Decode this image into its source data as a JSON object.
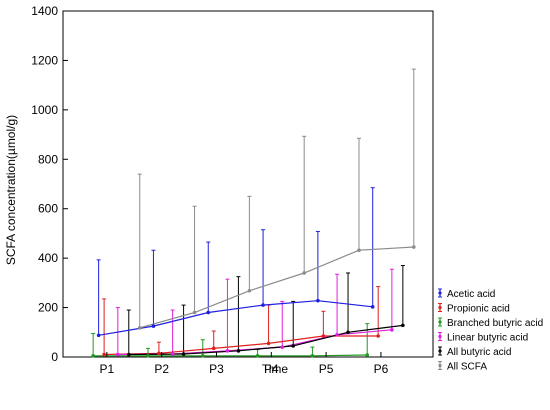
{
  "chart_data": {
    "type": "line",
    "xlabel": "Time",
    "ylabel": "SCFA concentration(µmol/g)",
    "ylim": [
      0,
      1400
    ],
    "yticks": [
      0,
      200,
      400,
      600,
      800,
      1000,
      1200,
      1400
    ],
    "grid": false,
    "legend_position": "right",
    "categories": [
      "P1",
      "P2",
      "P3",
      "P4",
      "P5",
      "P6"
    ],
    "series": [
      {
        "name": "Acetic acid",
        "color": "#1f1fe0",
        "x": [
          0.85,
          1.85,
          2.85,
          3.85,
          4.85,
          5.85
        ],
        "values": [
          88,
          125,
          180,
          210,
          228,
          203
        ],
        "upper": [
          393,
          432,
          465,
          515,
          508,
          685
        ]
      },
      {
        "name": "Propionic acid",
        "color": "#e01f1f",
        "x": [
          0.95,
          1.95,
          2.95,
          3.95,
          4.95,
          5.95
        ],
        "values": [
          10,
          15,
          35,
          55,
          85,
          85
        ],
        "upper": [
          235,
          60,
          105,
          210,
          185,
          285
        ]
      },
      {
        "name": "Branched butyric acid",
        "color": "#1f9a1f",
        "x": [
          0.75,
          1.75,
          2.75,
          3.75,
          4.75,
          5.75
        ],
        "values": [
          5,
          5,
          5,
          5,
          5,
          8
        ],
        "upper": [
          95,
          35,
          70,
          30,
          40,
          135
        ]
      },
      {
        "name": "Linear butyric acid",
        "color": "#e01fe0",
        "x": [
          1.2,
          2.2,
          3.2,
          4.2,
          5.2,
          6.2
        ],
        "values": [
          10,
          12,
          25,
          40,
          90,
          110
        ],
        "upper": [
          200,
          190,
          315,
          225,
          335,
          355
        ]
      },
      {
        "name": "All butyric acid",
        "color": "#000000",
        "x": [
          1.4,
          2.4,
          3.4,
          4.4,
          5.4,
          6.4
        ],
        "values": [
          10,
          12,
          25,
          45,
          100,
          128
        ],
        "upper": [
          190,
          210,
          325,
          225,
          340,
          370
        ]
      },
      {
        "name": "All SCFA",
        "color": "#8c8c8c",
        "x": [
          1.6,
          2.6,
          3.6,
          4.6,
          5.6,
          6.6
        ],
        "values": [
          118,
          180,
          268,
          340,
          432,
          445
        ],
        "upper": [
          740,
          610,
          650,
          893,
          885,
          1165
        ]
      }
    ]
  }
}
